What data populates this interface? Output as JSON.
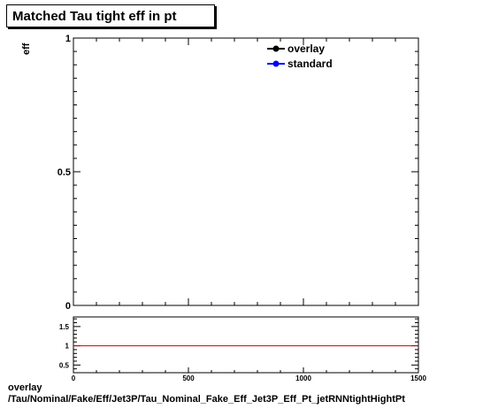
{
  "chart_data": [
    {
      "type": "line",
      "title": "Matched Tau tight eff in pt",
      "ylabel": "eff",
      "xlim": [
        0,
        1500
      ],
      "ylim": [
        0,
        1
      ],
      "y_ticks": [
        "0",
        "0.5",
        "1"
      ],
      "series": [
        {
          "name": "overlay",
          "color": "#000000",
          "x": [],
          "y": []
        },
        {
          "name": "standard",
          "color": "#0000ff",
          "x": [],
          "y": []
        }
      ],
      "legend": "top-right",
      "grid": false
    },
    {
      "type": "line",
      "xlim": [
        0,
        1500
      ],
      "ylim": [
        0.3,
        1.75
      ],
      "x_ticks": [
        "0",
        "500",
        "1000",
        "1500"
      ],
      "y_ticks": [
        "0.5",
        "1",
        "1.5"
      ],
      "reference_line": {
        "y": 1,
        "color": "#cc0000"
      },
      "grid": false
    }
  ],
  "footer": {
    "line1": "overlay",
    "line2": "/Tau/Nominal/Fake/Eff/Jet3P/Tau_Nominal_Fake_Eff_Jet3P_Eff_Pt_jetRNNtightHightPt"
  }
}
